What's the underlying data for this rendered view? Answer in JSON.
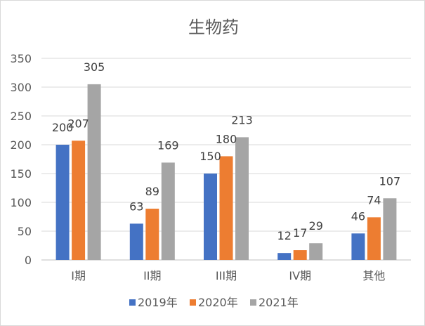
{
  "chart_data": {
    "type": "bar",
    "title": "生物药",
    "categories": [
      "I期",
      "II期",
      "III期",
      "IV期",
      "其他"
    ],
    "series": [
      {
        "name": "2019年",
        "color": "#4472C4",
        "values": [
          200,
          63,
          150,
          12,
          46
        ]
      },
      {
        "name": "2020年",
        "color": "#ED7D31",
        "values": [
          207,
          89,
          180,
          17,
          74
        ]
      },
      {
        "name": "2021年",
        "color": "#A5A5A5",
        "values": [
          305,
          169,
          213,
          29,
          107
        ]
      }
    ],
    "ylim": [
      0,
      350
    ],
    "yticks": [
      0,
      50,
      100,
      150,
      200,
      250,
      300,
      350
    ],
    "grid": true,
    "legend": "bottom"
  }
}
